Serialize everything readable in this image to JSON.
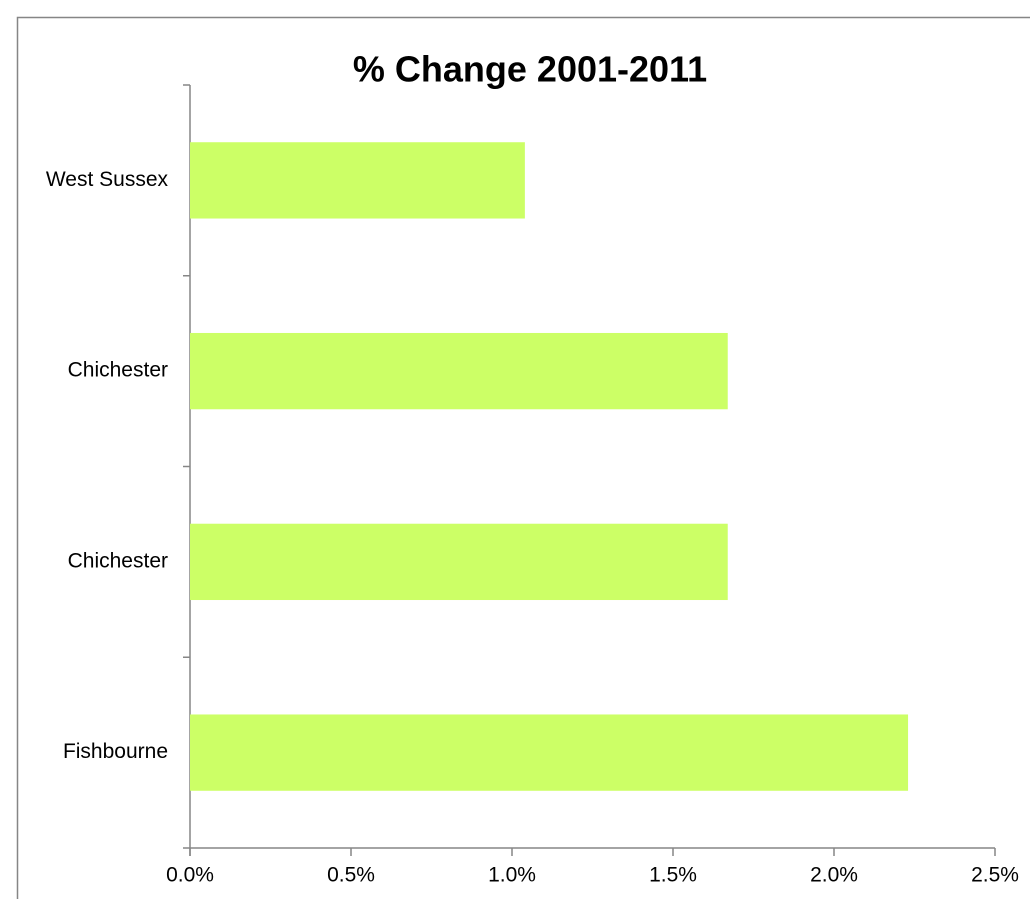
{
  "chart_data": {
    "type": "bar",
    "orientation": "horizontal",
    "title": "% Change 2001-2011",
    "categories": [
      "West Sussex",
      "Chichester",
      "Chichester",
      "Fishbourne"
    ],
    "values": [
      1.04,
      1.67,
      1.67,
      2.23
    ],
    "color": "#ccff66",
    "xlim": [
      0,
      2.5
    ],
    "xticks": [
      {
        "value": 0,
        "label": "0.0%"
      },
      {
        "value": 0.5,
        "label": "0.5%"
      },
      {
        "value": 1,
        "label": "1.0%"
      },
      {
        "value": 1.5,
        "label": "1.5%"
      },
      {
        "value": 2,
        "label": "2.0%"
      },
      {
        "value": 2.5,
        "label": "2.5%"
      }
    ],
    "grid": false
  }
}
